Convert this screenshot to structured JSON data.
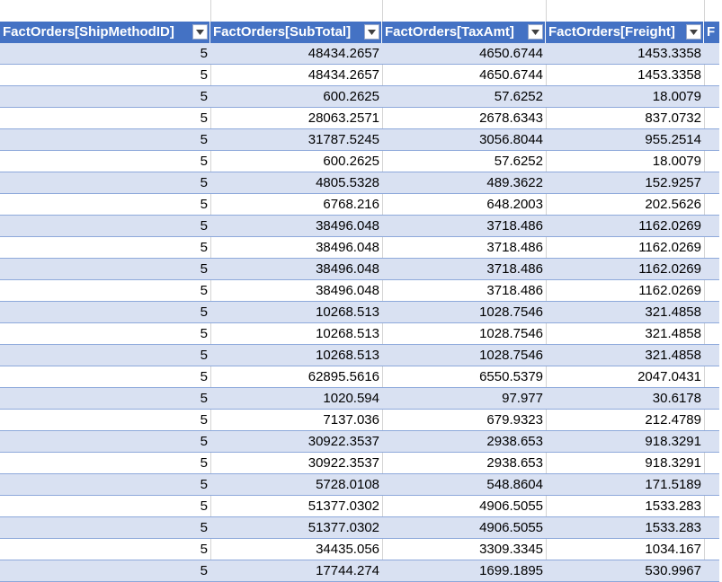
{
  "columns": [
    "FactOrders[ShipMethodID]",
    "FactOrders[SubTotal]",
    "FactOrders[TaxAmt]",
    "FactOrders[Freight]",
    "F"
  ],
  "rows": [
    [
      "5",
      "48434.2657",
      "4650.6744",
      "1453.3358"
    ],
    [
      "5",
      "48434.2657",
      "4650.6744",
      "1453.3358"
    ],
    [
      "5",
      "600.2625",
      "57.6252",
      "18.0079"
    ],
    [
      "5",
      "28063.2571",
      "2678.6343",
      "837.0732"
    ],
    [
      "5",
      "31787.5245",
      "3056.8044",
      "955.2514"
    ],
    [
      "5",
      "600.2625",
      "57.6252",
      "18.0079"
    ],
    [
      "5",
      "4805.5328",
      "489.3622",
      "152.9257"
    ],
    [
      "5",
      "6768.216",
      "648.2003",
      "202.5626"
    ],
    [
      "5",
      "38496.048",
      "3718.486",
      "1162.0269"
    ],
    [
      "5",
      "38496.048",
      "3718.486",
      "1162.0269"
    ],
    [
      "5",
      "38496.048",
      "3718.486",
      "1162.0269"
    ],
    [
      "5",
      "38496.048",
      "3718.486",
      "1162.0269"
    ],
    [
      "5",
      "10268.513",
      "1028.7546",
      "321.4858"
    ],
    [
      "5",
      "10268.513",
      "1028.7546",
      "321.4858"
    ],
    [
      "5",
      "10268.513",
      "1028.7546",
      "321.4858"
    ],
    [
      "5",
      "62895.5616",
      "6550.5379",
      "2047.0431"
    ],
    [
      "5",
      "1020.594",
      "97.977",
      "30.6178"
    ],
    [
      "5",
      "7137.036",
      "679.9323",
      "212.4789"
    ],
    [
      "5",
      "30922.3537",
      "2938.653",
      "918.3291"
    ],
    [
      "5",
      "30922.3537",
      "2938.653",
      "918.3291"
    ],
    [
      "5",
      "5728.0108",
      "548.8604",
      "171.5189"
    ],
    [
      "5",
      "51377.0302",
      "4906.5055",
      "1533.283"
    ],
    [
      "5",
      "51377.0302",
      "4906.5055",
      "1533.283"
    ],
    [
      "5",
      "34435.056",
      "3309.3345",
      "1034.167"
    ],
    [
      "5",
      "17744.274",
      "1699.1895",
      "530.9967"
    ]
  ],
  "colors": {
    "header_bg": "#4472c4",
    "band_bg": "#d9e1f2",
    "row_line": "#8ea9db"
  },
  "icons": {
    "filter": "filter-dropdown-icon"
  }
}
